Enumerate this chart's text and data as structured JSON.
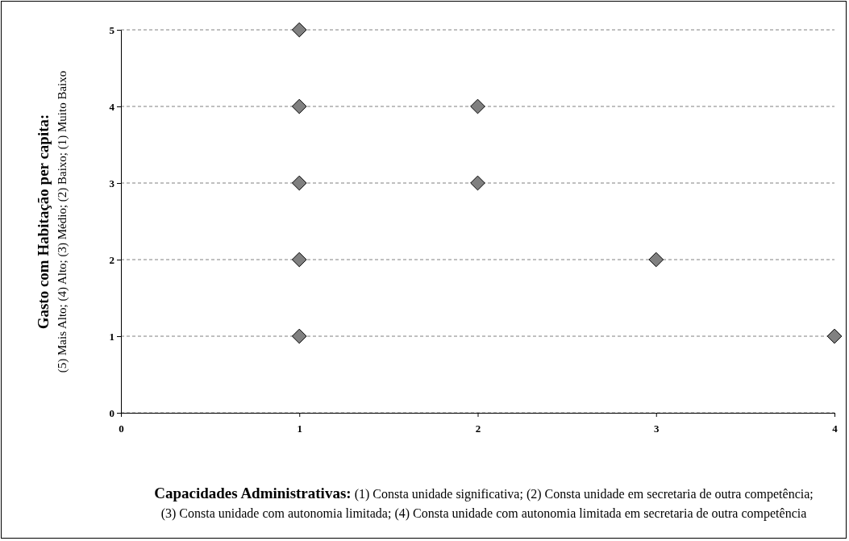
{
  "chart_data": {
    "type": "scatter",
    "xlabel": "Capacidades Administrativas: (1) Consta unidade significativa; (2) Consta unidade em secretaria de outra competência; (3) Consta unidade com autonomia limitada; (4) Consta unidade com autonomia limitada em secretaria de outra competência",
    "ylabel": "Gasto com Habitação per capita: (5) Mais Alto; (4) Alto; (3) Médio; (2) Baixo; (1) Muito Baixo",
    "x": [
      1,
      1,
      1,
      1,
      1,
      2,
      2,
      3,
      4
    ],
    "series": [
      {
        "color": "#808080",
        "values": [
          5,
          4,
          3,
          2,
          1,
          4,
          3,
          2,
          1
        ]
      }
    ],
    "xlim": [
      0,
      4
    ],
    "xticks": [
      0,
      1,
      2,
      3,
      4
    ],
    "ylim": [
      0,
      5
    ],
    "yticks": [
      0,
      1,
      2,
      3,
      4,
      5
    ],
    "grid": "y",
    "marker": "diamond"
  }
}
